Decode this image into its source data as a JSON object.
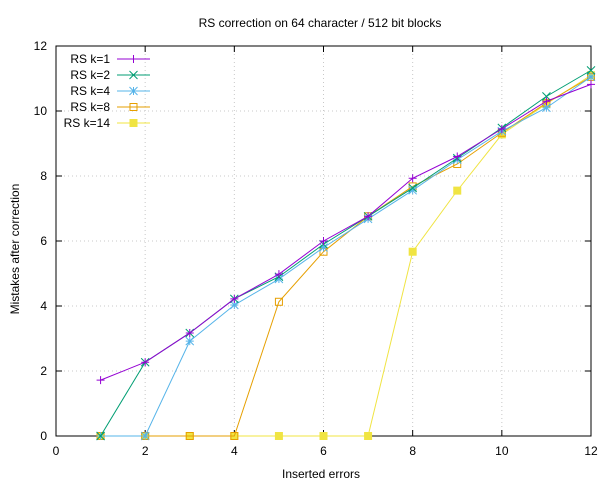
{
  "chart_data": {
    "type": "line",
    "title": "RS correction on 64 character / 512 bit blocks",
    "xlabel": "Inserted errors",
    "ylabel": "Mistakes after correction",
    "xlim": [
      0,
      12
    ],
    "ylim": [
      0,
      12
    ],
    "xticks": [
      0,
      2,
      4,
      6,
      8,
      10,
      12
    ],
    "yticks": [
      0,
      2,
      4,
      6,
      8,
      10,
      12
    ],
    "grid": true,
    "legend_position": "top-left",
    "x": [
      1,
      2,
      3,
      4,
      5,
      6,
      7,
      8,
      9,
      10,
      11,
      12
    ],
    "series": [
      {
        "name": "RS k=1",
        "color": "#9400d3",
        "marker": "plus",
        "values": [
          1.72,
          2.27,
          3.17,
          4.22,
          4.98,
          6.0,
          6.76,
          7.93,
          8.6,
          9.45,
          10.3,
          10.82
        ]
      },
      {
        "name": "RS k=2",
        "color": "#009e73",
        "marker": "cross",
        "values": [
          0,
          2.27,
          3.17,
          4.22,
          4.9,
          5.9,
          6.76,
          7.63,
          8.55,
          9.48,
          10.45,
          11.25
        ]
      },
      {
        "name": "RS k=4",
        "color": "#56b4e9",
        "marker": "star",
        "values": [
          0,
          0,
          2.92,
          4.03,
          4.83,
          5.8,
          6.68,
          7.56,
          8.5,
          9.38,
          10.1,
          11.05
        ]
      },
      {
        "name": "RS k=8",
        "color": "#e69f00",
        "marker": "open-square",
        "values": [
          0,
          0,
          0,
          0,
          4.13,
          5.67,
          6.76,
          7.68,
          8.37,
          9.33,
          10.25,
          11.05
        ]
      },
      {
        "name": "RS k=14",
        "color": "#f0e442",
        "marker": "filled-square",
        "values": [
          0,
          0,
          0,
          0,
          0,
          0,
          0,
          5.67,
          7.55,
          9.28,
          10.22,
          11.1
        ]
      }
    ]
  }
}
